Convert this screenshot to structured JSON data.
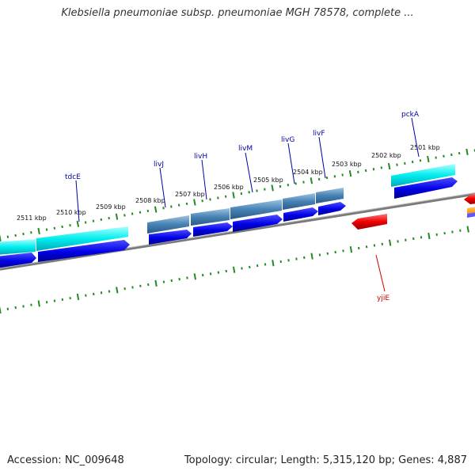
{
  "title": "Klebsiella pneumoniae subsp. pneumoniae MGH 78578, complete ...",
  "accession": "Accession: NC_009648",
  "info": "Topology: circular; Length: 5,315,120 bp; Genes: 4,887",
  "scale_ticks": [
    "2511 kbp",
    "2510 kbp",
    "2509 kbp",
    "2508 kbp",
    "2507 kbp",
    "2506 kbp",
    "2505 kbp",
    "2504 kbp",
    "2503 kbp",
    "2502 kbp",
    "2501 kbp"
  ],
  "gene_labels": [
    {
      "name": "tdcE",
      "color": "#0000aa"
    },
    {
      "name": "livJ",
      "color": "#0000aa"
    },
    {
      "name": "livH",
      "color": "#0000aa"
    },
    {
      "name": "livM",
      "color": "#0000aa"
    },
    {
      "name": "livG",
      "color": "#0000aa"
    },
    {
      "name": "livF",
      "color": "#0000aa"
    },
    {
      "name": "pckA",
      "color": "#0000aa"
    },
    {
      "name": "yjiE",
      "color": "#cc0000"
    }
  ],
  "colors": {
    "backbone": "#808080",
    "tick": "#228b22",
    "cds_forward": "#0000e6",
    "gene_feature": "#00e5ee",
    "operon_feature": "#4682b4",
    "cds_reverse": "#ee0000",
    "other_feature": "#ff8c00"
  }
}
